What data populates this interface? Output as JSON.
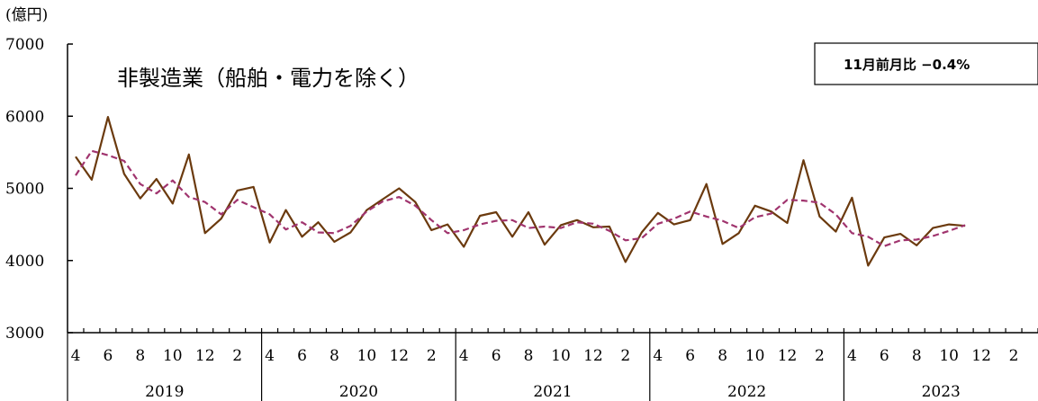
{
  "chart_data": {
    "type": "line",
    "title": "非製造業（船舶・電力を除く）",
    "unit_label": "(億円)",
    "change_note": "11月前月比 −0.4%",
    "ylim": [
      3000,
      7000
    ],
    "y_ticks": [
      3000,
      4000,
      5000,
      6000,
      7000
    ],
    "month_labels": [
      "4",
      "6",
      "8",
      "10",
      "12",
      "2",
      "4",
      "6",
      "8",
      "10",
      "12",
      "2",
      "4",
      "6",
      "8",
      "10",
      "12",
      "2",
      "4",
      "6",
      "8",
      "10",
      "12",
      "2",
      "4",
      "6",
      "8",
      "10",
      "12",
      "2"
    ],
    "month_label_index": [
      0,
      2,
      4,
      6,
      8,
      10,
      12,
      14,
      16,
      18,
      20,
      22,
      24,
      26,
      28,
      30,
      32,
      34,
      36,
      38,
      40,
      42,
      44,
      46,
      48,
      50,
      52,
      54,
      56,
      58
    ],
    "year_labels": [
      "2019",
      "2020",
      "2021",
      "2022",
      "2023"
    ],
    "months_total": 60,
    "grid": false,
    "colors": {
      "actual": "#6B3A0E",
      "trend": "#A0346E",
      "axis": "#000000"
    },
    "series": [
      {
        "style": "solid",
        "values": [
          5440,
          5120,
          5990,
          5200,
          4860,
          5130,
          4790,
          5470,
          4380,
          4580,
          4970,
          5020,
          4250,
          4700,
          4330,
          4530,
          4260,
          4390,
          4700,
          4850,
          5000,
          4810,
          4420,
          4500,
          4190,
          4620,
          4670,
          4330,
          4670,
          4220,
          4490,
          4560,
          4460,
          4470,
          3980,
          4390,
          4660,
          4500,
          4560,
          5060,
          4230,
          4380,
          4760,
          4680,
          4520,
          5390,
          4610,
          4400,
          4870,
          3930,
          4320,
          4370,
          4210,
          4450,
          4500,
          4480
        ]
      },
      {
        "style": "dashed",
        "values": [
          5180,
          5520,
          5460,
          5380,
          5060,
          4930,
          5110,
          4880,
          4810,
          4640,
          4840,
          4740,
          4640,
          4430,
          4530,
          4390,
          4380,
          4480,
          4680,
          4820,
          4880,
          4760,
          4560,
          4380,
          4420,
          4500,
          4550,
          4560,
          4450,
          4470,
          4450,
          4530,
          4510,
          4410,
          4280,
          4310,
          4510,
          4580,
          4680,
          4610,
          4550,
          4450,
          4600,
          4650,
          4840,
          4830,
          4800,
          4640,
          4380,
          4330,
          4200,
          4280,
          4290,
          4340,
          4410,
          4490
        ]
      }
    ]
  }
}
